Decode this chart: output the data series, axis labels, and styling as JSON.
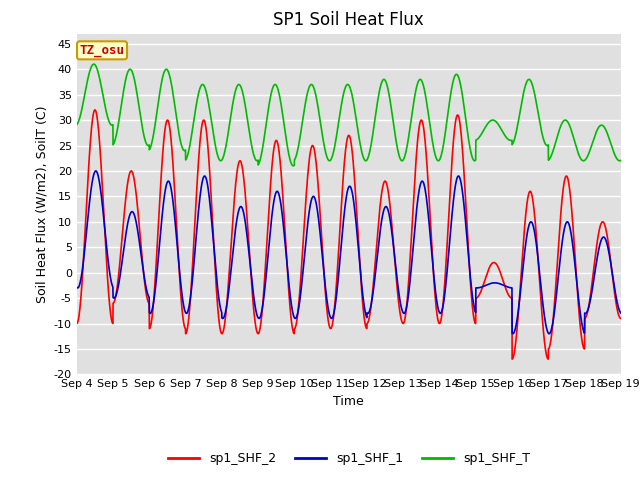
{
  "title": "SP1 Soil Heat Flux",
  "xlabel": "Time",
  "ylabel": "Soil Heat Flux (W/m2), SoilT (C)",
  "ylim": [
    -20,
    47
  ],
  "yticks": [
    -20,
    -15,
    -10,
    -5,
    0,
    5,
    10,
    15,
    20,
    25,
    30,
    35,
    40,
    45
  ],
  "x_labels": [
    "Sep 4",
    "Sep 5",
    "Sep 6",
    "Sep 7",
    "Sep 8",
    "Sep 9",
    "Sep 10",
    "Sep 11",
    "Sep 12",
    "Sep 13",
    "Sep 14",
    "Sep 15",
    "Sep 16",
    "Sep 17",
    "Sep 18",
    "Sep 19"
  ],
  "legend_labels": [
    "sp1_SHF_2",
    "sp1_SHF_1",
    "sp1_SHF_T"
  ],
  "line_colors": [
    "#ff0000",
    "#0000cc",
    "#00bb00"
  ],
  "annotation_text": "TZ_osu",
  "annotation_color": "#cc0000",
  "annotation_bg": "#ffffcc",
  "background_color": "#e0e0e0",
  "title_fontsize": 12,
  "axis_label_fontsize": 9,
  "tick_fontsize": 8,
  "shf2_peaks": [
    32,
    20,
    30,
    30,
    22,
    26,
    25,
    27,
    18,
    30,
    31,
    2,
    16,
    19,
    10
  ],
  "shf2_troughs": [
    -10,
    -6,
    -11,
    -12,
    -12,
    -12,
    -11,
    -11,
    -10,
    -10,
    -10,
    -5,
    -17,
    -15,
    -9
  ],
  "shf1_peaks": [
    20,
    12,
    18,
    19,
    13,
    16,
    15,
    17,
    13,
    18,
    19,
    -2,
    10,
    10,
    7
  ],
  "shf1_troughs": [
    -3,
    -5,
    -8,
    -8,
    -9,
    -9,
    -9,
    -9,
    -8,
    -8,
    -8,
    -3,
    -12,
    -12,
    -8
  ],
  "shft_peaks": [
    41,
    40,
    40,
    37,
    37,
    37,
    37,
    37,
    38,
    38,
    39,
    30,
    38,
    30,
    29
  ],
  "shft_troughs": [
    29,
    25,
    24,
    22,
    22,
    21,
    22,
    22,
    22,
    22,
    22,
    26,
    25,
    22,
    22
  ]
}
